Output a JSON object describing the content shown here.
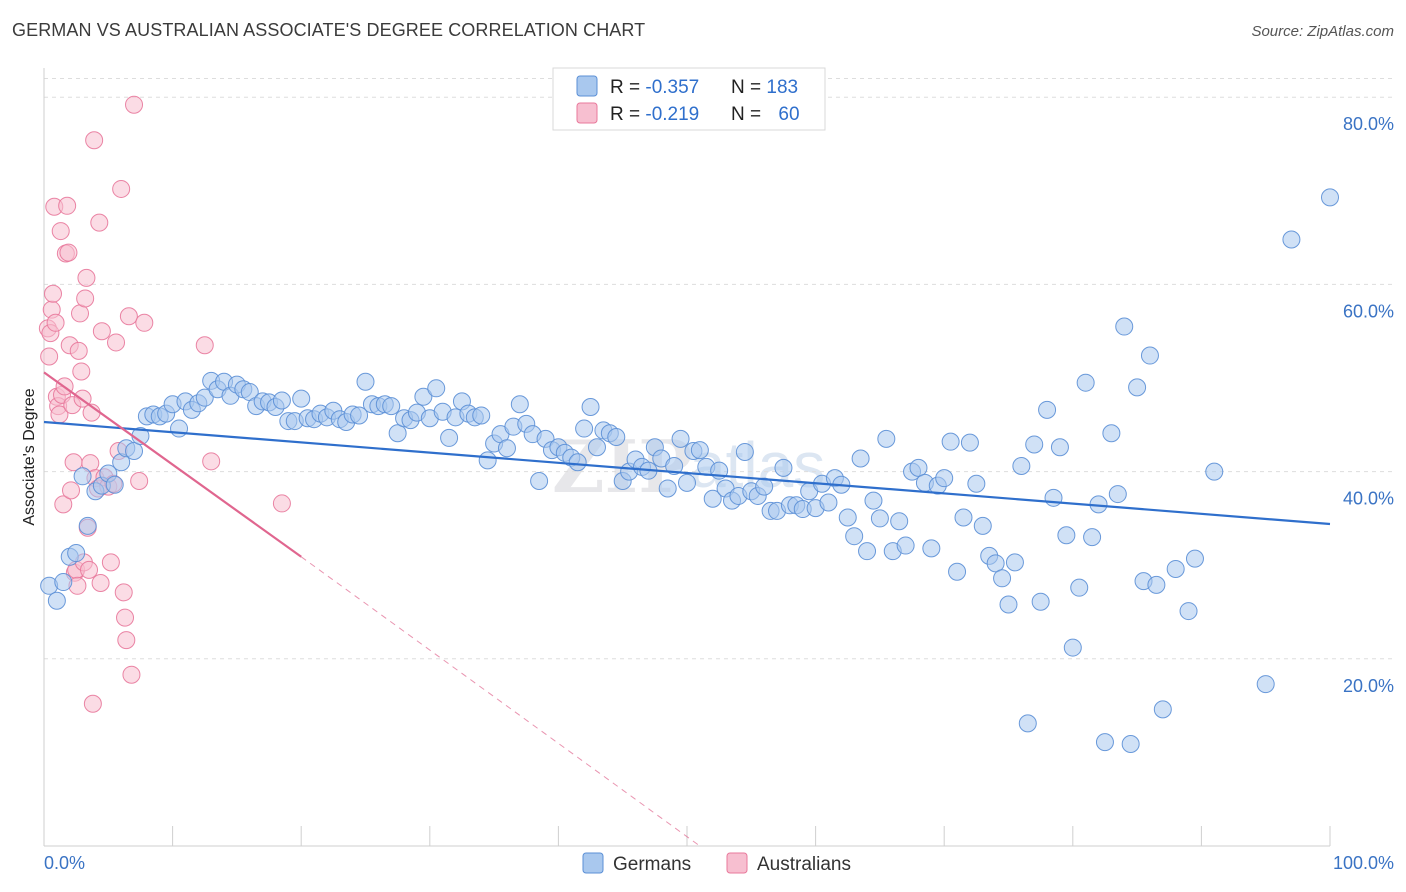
{
  "title": "GERMAN VS AUSTRALIAN ASSOCIATE'S DEGREE CORRELATION CHART",
  "source": "Source: ZipAtlas.com",
  "watermark": {
    "zip": "ZIP",
    "atlas": "atlas"
  },
  "colors": {
    "germans_fill": "#a9c8ee",
    "germans_stroke": "#5b8fd6",
    "germans_line": "#2f6fcc",
    "australians_fill": "#f7bfd0",
    "australians_stroke": "#e8789b",
    "australians_line": "#e0668f",
    "tick_label": "#3a73c4",
    "grid": "#dddddd"
  },
  "legend": {
    "rows": [
      {
        "r_label": "R = ",
        "r_value": "-0.357",
        "n_label": "N = ",
        "n_value": "183"
      },
      {
        "r_label": "R = ",
        "r_value": "-0.219",
        "n_label": "N = ",
        "n_value": "60"
      }
    ]
  },
  "bottom_legend": [
    "Germans",
    "Australians"
  ],
  "chart_data": {
    "type": "scatter",
    "title": "GERMAN VS AUSTRALIAN ASSOCIATE'S DEGREE CORRELATION CHART",
    "xlabel": "",
    "ylabel": "Associate's Degree",
    "xlim": [
      0,
      100
    ],
    "ylim": [
      0,
      82
    ],
    "x_tick_labels": [
      "0.0%",
      "100.0%"
    ],
    "y_ticks": [
      20,
      40,
      60,
      80
    ],
    "y_tick_labels": [
      "20.0%",
      "40.0%",
      "60.0%",
      "80.0%"
    ],
    "grid": "horizontal dashed",
    "legend_position": "top-center",
    "series": [
      {
        "name": "Germans",
        "r": -0.357,
        "n": 183,
        "trend": {
          "x": [
            0,
            100
          ],
          "y": [
            45.3,
            34.4
          ]
        },
        "points": [
          [
            0.4,
            27.8
          ],
          [
            1,
            26.2
          ],
          [
            1.5,
            28.2
          ],
          [
            2,
            30.9
          ],
          [
            2.5,
            31.3
          ],
          [
            3,
            39.5
          ],
          [
            3.4,
            34.2
          ],
          [
            4,
            37.9
          ],
          [
            4.5,
            38.5
          ],
          [
            5,
            39.8
          ],
          [
            5.5,
            38.6
          ],
          [
            6,
            41
          ],
          [
            6.4,
            42.5
          ],
          [
            7,
            42.2
          ],
          [
            7.5,
            43.8
          ],
          [
            8,
            45.9
          ],
          [
            8.5,
            46.1
          ],
          [
            9,
            45.9
          ],
          [
            9.5,
            46.2
          ],
          [
            10,
            47.2
          ],
          [
            10.5,
            44.6
          ],
          [
            11,
            47.5
          ],
          [
            11.5,
            46.6
          ],
          [
            12,
            47.3
          ],
          [
            12.5,
            47.9
          ],
          [
            13,
            49.7
          ],
          [
            13.5,
            48.8
          ],
          [
            14,
            49.6
          ],
          [
            14.5,
            48.1
          ],
          [
            15,
            49.3
          ],
          [
            15.5,
            48.8
          ],
          [
            16,
            48.5
          ],
          [
            16.5,
            47
          ],
          [
            17,
            47.5
          ],
          [
            17.5,
            47.4
          ],
          [
            18,
            46.9
          ],
          [
            18.5,
            47.6
          ],
          [
            19,
            45.4
          ],
          [
            19.5,
            45.4
          ],
          [
            20,
            47.8
          ],
          [
            20.5,
            45.7
          ],
          [
            21,
            45.6
          ],
          [
            21.5,
            46.2
          ],
          [
            22,
            45.8
          ],
          [
            22.5,
            46.5
          ],
          [
            23,
            45.6
          ],
          [
            23.5,
            45.3
          ],
          [
            24,
            46.1
          ],
          [
            24.5,
            46
          ],
          [
            25,
            49.6
          ],
          [
            25.5,
            47.2
          ],
          [
            26,
            47
          ],
          [
            26.5,
            47.2
          ],
          [
            27,
            47
          ],
          [
            27.5,
            44.1
          ],
          [
            28,
            45.7
          ],
          [
            28.5,
            45.5
          ],
          [
            29,
            46.3
          ],
          [
            29.5,
            48
          ],
          [
            30,
            45.7
          ],
          [
            30.5,
            48.9
          ],
          [
            31,
            46.4
          ],
          [
            31.5,
            43.6
          ],
          [
            32,
            45.8
          ],
          [
            32.5,
            47.5
          ],
          [
            33,
            46.2
          ],
          [
            33.5,
            45.8
          ],
          [
            34,
            46
          ],
          [
            34.5,
            41.2
          ],
          [
            35,
            43
          ],
          [
            35.5,
            44
          ],
          [
            36,
            42.5
          ],
          [
            36.5,
            44.8
          ],
          [
            37,
            47.2
          ],
          [
            37.5,
            45.1
          ],
          [
            38,
            44
          ],
          [
            38.5,
            39
          ],
          [
            39,
            43.5
          ],
          [
            39.5,
            42.3
          ],
          [
            40,
            42.6
          ],
          [
            40.5,
            42
          ],
          [
            41,
            41.5
          ],
          [
            41.5,
            41
          ],
          [
            42,
            44.6
          ],
          [
            42.5,
            46.9
          ],
          [
            43,
            42.6
          ],
          [
            43.5,
            44.4
          ],
          [
            44,
            44.1
          ],
          [
            44.5,
            43.7
          ],
          [
            45,
            39
          ],
          [
            45.5,
            40
          ],
          [
            46,
            41.3
          ],
          [
            46.5,
            40.5
          ],
          [
            47,
            40.1
          ],
          [
            47.5,
            42.6
          ],
          [
            48,
            41.4
          ],
          [
            48.5,
            38.2
          ],
          [
            49,
            40.6
          ],
          [
            49.5,
            43.5
          ],
          [
            50,
            38.8
          ],
          [
            50.5,
            42.2
          ],
          [
            51,
            42.3
          ],
          [
            51.5,
            40.5
          ],
          [
            52,
            37.1
          ],
          [
            52.5,
            40.1
          ],
          [
            53,
            38.2
          ],
          [
            53.5,
            36.9
          ],
          [
            54,
            37.4
          ],
          [
            54.5,
            42.1
          ],
          [
            55,
            37.9
          ],
          [
            55.5,
            37.4
          ],
          [
            56,
            38.4
          ],
          [
            56.5,
            35.8
          ],
          [
            57,
            35.8
          ],
          [
            57.5,
            40.4
          ],
          [
            58,
            36.4
          ],
          [
            58.5,
            36.4
          ],
          [
            59,
            36
          ],
          [
            59.5,
            37.9
          ],
          [
            60,
            36.1
          ],
          [
            60.5,
            38.7
          ],
          [
            61,
            36.7
          ],
          [
            61.5,
            39.3
          ],
          [
            62,
            38.6
          ],
          [
            62.5,
            35.1
          ],
          [
            63,
            33.1
          ],
          [
            63.5,
            41.4
          ],
          [
            64,
            31.5
          ],
          [
            64.5,
            36.9
          ],
          [
            65,
            35
          ],
          [
            65.5,
            43.5
          ],
          [
            66,
            31.5
          ],
          [
            66.5,
            34.7
          ],
          [
            67,
            32.1
          ],
          [
            67.5,
            40
          ],
          [
            68,
            40.4
          ],
          [
            68.5,
            38.8
          ],
          [
            69,
            31.8
          ],
          [
            69.5,
            38.5
          ],
          [
            70,
            39.3
          ],
          [
            70.5,
            43.2
          ],
          [
            71,
            29.3
          ],
          [
            71.5,
            35.1
          ],
          [
            72,
            43.1
          ],
          [
            72.5,
            38.7
          ],
          [
            73,
            34.2
          ],
          [
            73.5,
            31
          ],
          [
            74,
            30.2
          ],
          [
            74.5,
            28.6
          ],
          [
            75,
            25.8
          ],
          [
            75.5,
            30.3
          ],
          [
            76,
            40.6
          ],
          [
            76.5,
            13.1
          ],
          [
            77,
            42.9
          ],
          [
            77.5,
            26.1
          ],
          [
            78,
            46.6
          ],
          [
            78.5,
            37.2
          ],
          [
            79,
            42.6
          ],
          [
            79.5,
            33.2
          ],
          [
            80,
            21.2
          ],
          [
            80.5,
            27.6
          ],
          [
            81,
            49.5
          ],
          [
            81.5,
            33
          ],
          [
            82,
            36.5
          ],
          [
            82.5,
            11.1
          ],
          [
            83,
            44.1
          ],
          [
            83.5,
            37.6
          ],
          [
            84,
            55.5
          ],
          [
            84.5,
            10.9
          ],
          [
            85,
            49
          ],
          [
            85.5,
            28.3
          ],
          [
            86,
            52.4
          ],
          [
            86.5,
            27.9
          ],
          [
            87,
            14.6
          ],
          [
            88,
            29.6
          ],
          [
            89,
            25.1
          ],
          [
            89.5,
            30.7
          ],
          [
            91,
            40
          ],
          [
            95,
            17.3
          ],
          [
            97,
            64.8
          ],
          [
            100,
            69.3
          ]
        ]
      },
      {
        "name": "Australians",
        "r": -0.219,
        "n": 60,
        "trend": {
          "x": [
            0,
            20
          ],
          "y": [
            50.6,
            30.9
          ]
        },
        "trend_extrapolated": {
          "x": [
            20,
            51
          ],
          "y": [
            30.9,
            0
          ]
        },
        "points": [
          [
            0.3,
            55.3
          ],
          [
            0.4,
            52.3
          ],
          [
            0.5,
            54.8
          ],
          [
            0.6,
            57.3
          ],
          [
            0.7,
            59
          ],
          [
            0.8,
            68.3
          ],
          [
            0.9,
            55.9
          ],
          [
            1,
            48
          ],
          [
            1.1,
            47
          ],
          [
            1.2,
            46.1
          ],
          [
            1.3,
            65.7
          ],
          [
            1.4,
            48.2
          ],
          [
            1.5,
            36.5
          ],
          [
            1.6,
            49.1
          ],
          [
            1.7,
            63.3
          ],
          [
            1.8,
            68.4
          ],
          [
            1.9,
            63.4
          ],
          [
            2,
            53.5
          ],
          [
            2.1,
            38
          ],
          [
            2.2,
            47.1
          ],
          [
            2.3,
            41
          ],
          [
            2.4,
            29.2
          ],
          [
            2.5,
            29.5
          ],
          [
            2.6,
            27.8
          ],
          [
            2.7,
            52.9
          ],
          [
            2.8,
            56.9
          ],
          [
            2.9,
            50.7
          ],
          [
            3,
            47.8
          ],
          [
            3.1,
            30.3
          ],
          [
            3.2,
            58.5
          ],
          [
            3.3,
            60.7
          ],
          [
            3.4,
            34
          ],
          [
            3.5,
            29.5
          ],
          [
            3.6,
            40.9
          ],
          [
            3.7,
            46.3
          ],
          [
            3.8,
            15.2
          ],
          [
            3.9,
            75.4
          ],
          [
            4,
            39.3
          ],
          [
            4.2,
            38.2
          ],
          [
            4.3,
            66.6
          ],
          [
            4.4,
            28.1
          ],
          [
            4.5,
            55
          ],
          [
            4.7,
            39.4
          ],
          [
            5,
            38.4
          ],
          [
            5.2,
            30.3
          ],
          [
            5.4,
            38.7
          ],
          [
            5.6,
            53.8
          ],
          [
            5.8,
            42.2
          ],
          [
            6,
            70.2
          ],
          [
            6.2,
            27.1
          ],
          [
            6.3,
            24.4
          ],
          [
            6.4,
            22
          ],
          [
            6.6,
            56.6
          ],
          [
            6.8,
            18.3
          ],
          [
            7,
            79.2
          ],
          [
            7.4,
            39
          ],
          [
            7.8,
            55.9
          ],
          [
            12.5,
            53.5
          ],
          [
            13,
            41.1
          ],
          [
            18.5,
            36.6
          ]
        ]
      }
    ]
  }
}
